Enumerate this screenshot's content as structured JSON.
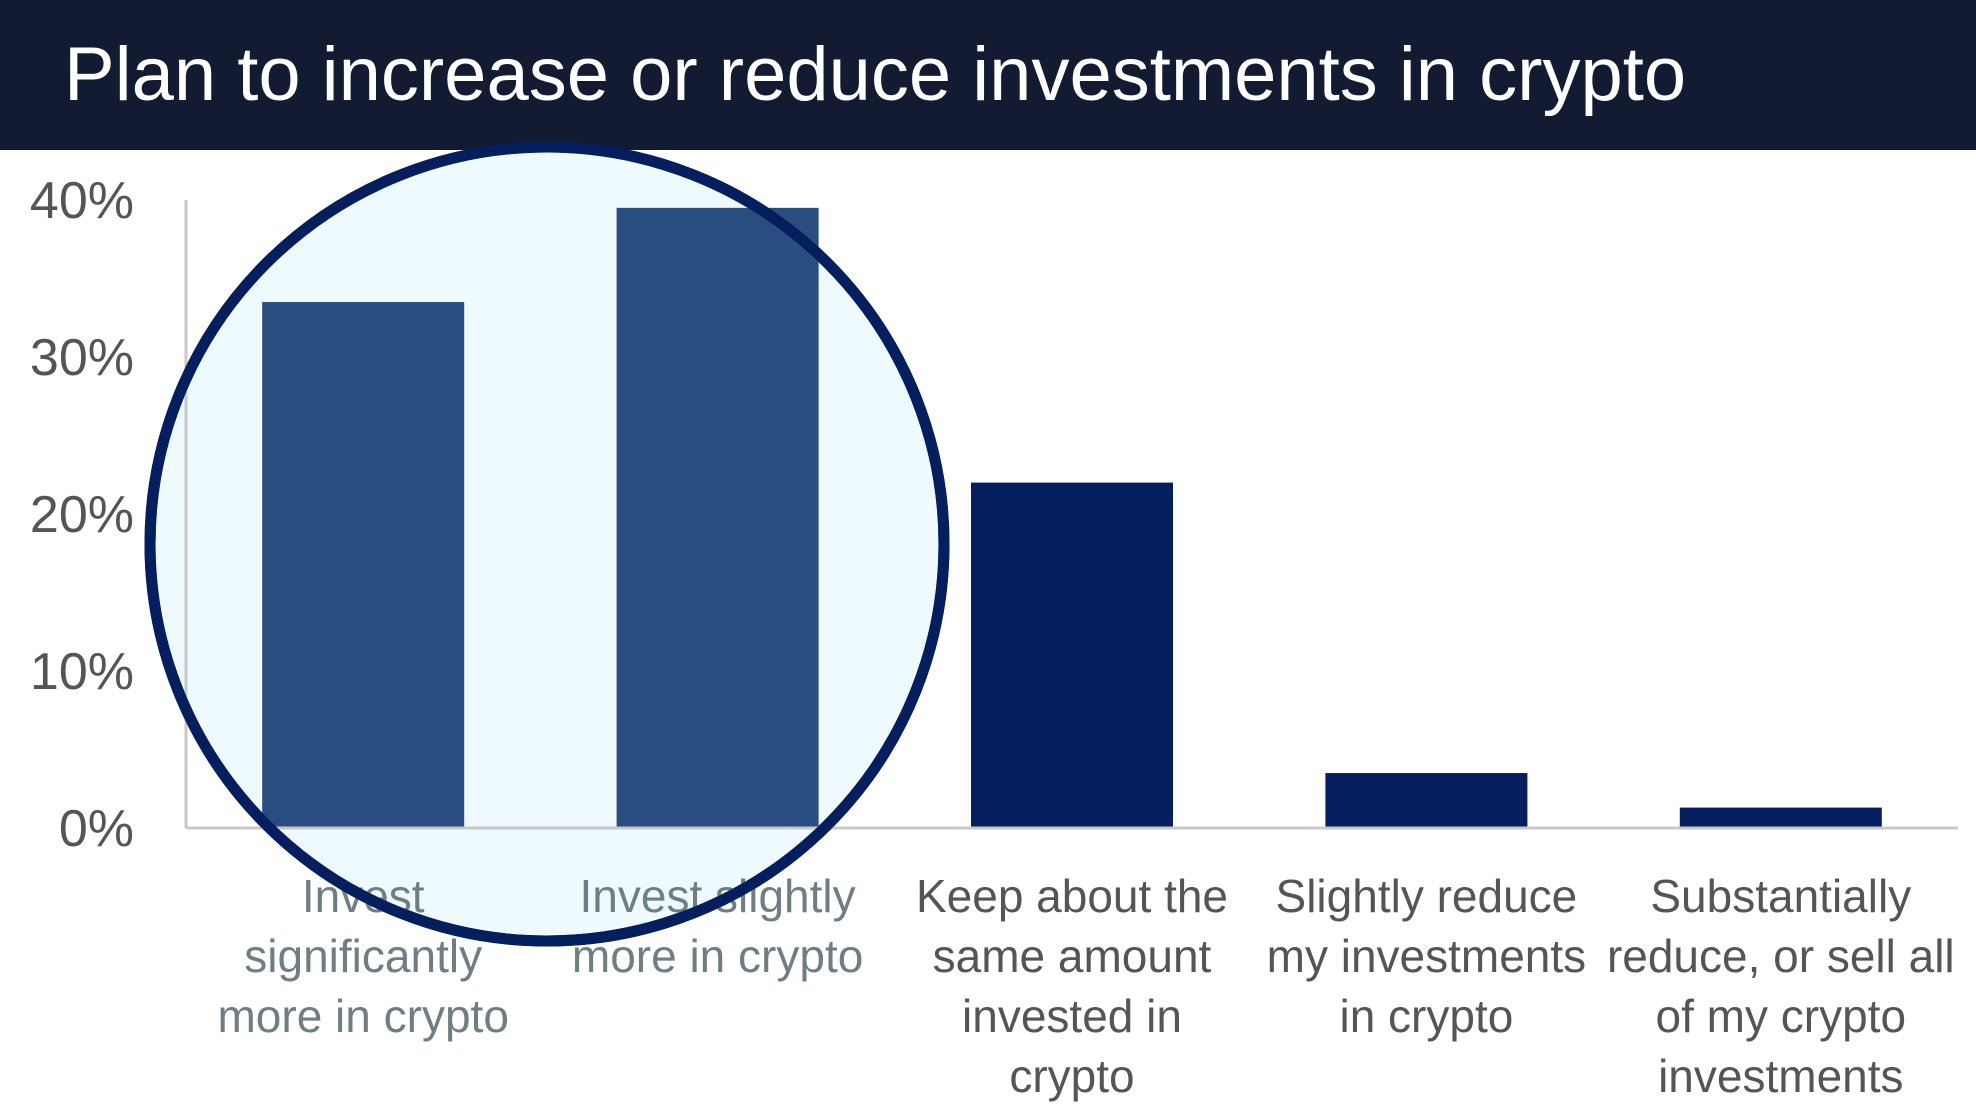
{
  "chart_data": {
    "type": "bar",
    "title": "Plan to increase or reduce investments in crypto",
    "categories": [
      [
        "Invest",
        "significantly",
        "more in crypto"
      ],
      [
        "Invest slightly",
        "more in crypto"
      ],
      [
        "Keep about the",
        "same amount",
        "invested in",
        "crypto"
      ],
      [
        "Slightly reduce",
        "my investments",
        "in crypto"
      ],
      [
        "Substantially",
        "reduce, or sell all",
        "of my crypto",
        "investments"
      ]
    ],
    "values": [
      33.5,
      39.5,
      22,
      3.5,
      1.3
    ],
    "unit": "%",
    "ylim": [
      0,
      40
    ],
    "yticks": [
      "0%",
      "10%",
      "20%",
      "30%",
      "40%"
    ],
    "highlighted_categories": [
      0,
      1
    ],
    "grid": false,
    "colors": {
      "bar": "#041e5e",
      "bar_highlighted": "#2a4d80",
      "highlight_fill": "#eefafd",
      "highlight_stroke": "#041e5e",
      "axis": "#c8c8c8",
      "tick_text": "#555555",
      "label_text": "#555555",
      "label_text_highlighted": "#6e7e83",
      "title_bar": "#131b33",
      "title_text": "#ffffff"
    }
  }
}
